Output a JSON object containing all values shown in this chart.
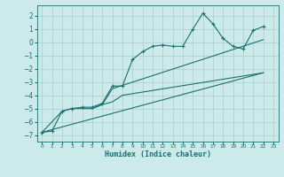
{
  "xlabel": "Humidex (Indice chaleur)",
  "bg_color": "#cceaea",
  "grid_color": "#aacccc",
  "line_color": "#1a7070",
  "xlim": [
    -0.5,
    23.5
  ],
  "ylim": [
    -7.5,
    2.8
  ],
  "xticks": [
    0,
    1,
    2,
    3,
    4,
    5,
    6,
    7,
    8,
    9,
    10,
    11,
    12,
    13,
    14,
    15,
    16,
    17,
    18,
    19,
    20,
    21,
    22,
    23
  ],
  "yticks": [
    -7,
    -6,
    -5,
    -4,
    -3,
    -2,
    -1,
    0,
    1,
    2
  ],
  "line1_x": [
    0,
    1,
    2,
    3,
    4,
    5,
    6,
    7,
    8,
    9,
    10,
    11,
    12,
    13,
    14,
    15,
    16,
    17,
    18,
    19,
    20,
    21,
    22
  ],
  "line1_y": [
    -6.8,
    -6.7,
    -5.2,
    -5.0,
    -4.9,
    -4.9,
    -4.6,
    -3.3,
    -3.3,
    -1.3,
    -0.7,
    -0.3,
    -0.2,
    -0.3,
    -0.3,
    1.0,
    2.2,
    1.4,
    0.3,
    -0.3,
    -0.5,
    0.9,
    1.2
  ],
  "line2_x": [
    0,
    2,
    3,
    4,
    5,
    6,
    7,
    8,
    22
  ],
  "line2_y": [
    -6.8,
    -5.2,
    -5.0,
    -5.0,
    -5.0,
    -4.7,
    -4.5,
    -4.0,
    -2.3
  ],
  "line3_x": [
    0,
    22
  ],
  "line3_y": [
    -6.8,
    -2.3
  ],
  "line4_x": [
    5,
    6,
    7,
    22
  ],
  "line4_y": [
    -5.0,
    -4.7,
    -3.5,
    0.2
  ],
  "marker": "+"
}
